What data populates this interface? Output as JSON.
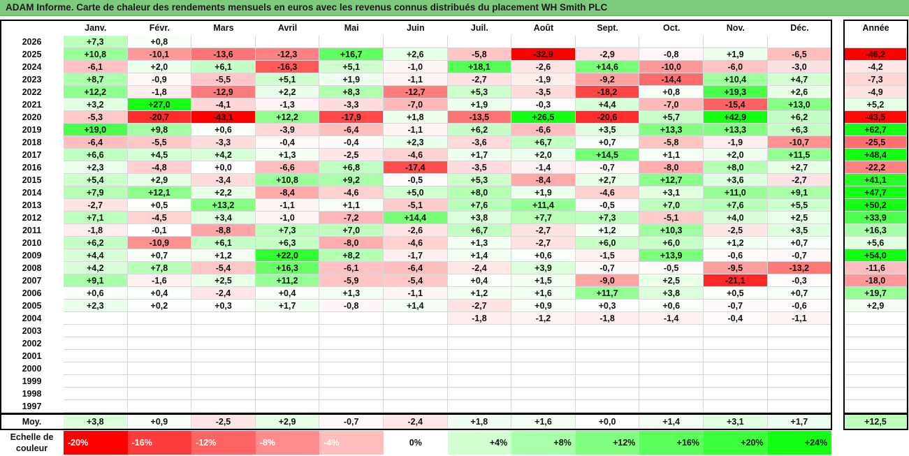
{
  "title": "ADAM Informe. Carte de chaleur des rendements mensuels en euros avec les revenus connus distribués du placement WH Smith PLC",
  "chart_data": {
    "type": "heatmap",
    "columns": [
      "Janv.",
      "Févr.",
      "Mars",
      "Avril",
      "Mai",
      "Juin",
      "Juil.",
      "Août",
      "Sept.",
      "Oct.",
      "Nov.",
      "Déc."
    ],
    "year_column_label": "Année",
    "rows": [
      {
        "year": "2026",
        "months": [
          "+7,3",
          "+0,8",
          "",
          "",
          "",
          "",
          "",
          "",
          "",
          "",
          "",
          ""
        ],
        "annual": ""
      },
      {
        "year": "2025",
        "months": [
          "+10,8",
          "-10,1",
          "-13,6",
          "-12,3",
          "+16,7",
          "+2,6",
          "-5,8",
          "-32,9",
          "-2,9",
          "-0,8",
          "+1,9",
          "-6,5"
        ],
        "annual": "-46,2"
      },
      {
        "year": "2024",
        "months": [
          "-6,1",
          "+2,0",
          "+6,1",
          "-16,3",
          "+5,1",
          "-1,0",
          "+18,1",
          "-2,6",
          "+14,6",
          "-10,0",
          "-6,0",
          "-3,0"
        ],
        "annual": "-4,2"
      },
      {
        "year": "2023",
        "months": [
          "+8,7",
          "-0,9",
          "-5,5",
          "+5,1",
          "+1,9",
          "-1,1",
          "-2,7",
          "-1,9",
          "-9,2",
          "-14,4",
          "+10,4",
          "+4,7"
        ],
        "annual": "-7,3"
      },
      {
        "year": "2022",
        "months": [
          "+12,2",
          "-1,8",
          "-12,9",
          "+2,2",
          "+8,3",
          "-12,7",
          "+5,3",
          "-3,5",
          "-18,2",
          "+0,8",
          "+19,3",
          "+2,6"
        ],
        "annual": "-4,9"
      },
      {
        "year": "2021",
        "months": [
          "+3,2",
          "+27,0",
          "-4,1",
          "-1,3",
          "-3,3",
          "-7,0",
          "+1,9",
          "-0,3",
          "+4,4",
          "-7,0",
          "-15,4",
          "+13,0"
        ],
        "annual": "+5,2"
      },
      {
        "year": "2020",
        "months": [
          "-5,3",
          "-20,7",
          "-43,1",
          "+12,2",
          "-17,9",
          "+1,8",
          "-13,5",
          "+26,5",
          "-20,6",
          "+5,7",
          "+42,9",
          "+6,2"
        ],
        "annual": "-43,5"
      },
      {
        "year": "2019",
        "months": [
          "+19,0",
          "+9,8",
          "+0,6",
          "-3,9",
          "-6,4",
          "-1,1",
          "+6,2",
          "-6,6",
          "+3,5",
          "+13,3",
          "+13,3",
          "+6,3"
        ],
        "annual": "+62,7"
      },
      {
        "year": "2018",
        "months": [
          "-6,4",
          "-5,5",
          "-3,3",
          "-0,4",
          "-0,4",
          "+2,3",
          "-3,6",
          "+6,7",
          "+0,7",
          "-5,8",
          "-1,9",
          "-10,7"
        ],
        "annual": "-25,5"
      },
      {
        "year": "2017",
        "months": [
          "+6,6",
          "+4,5",
          "+4,2",
          "+1,3",
          "-2,5",
          "-4,6",
          "+1,7",
          "+2,0",
          "+14,5",
          "+1,1",
          "+2,0",
          "+11,5"
        ],
        "annual": "+48,4"
      },
      {
        "year": "2016",
        "months": [
          "+2,3",
          "-4,8",
          "+0,0",
          "-6,6",
          "+6,8",
          "-17,4",
          "-3,5",
          "-1,4",
          "-0,7",
          "-8,0",
          "+8,0",
          "+2,7"
        ],
        "annual": "-22,2"
      },
      {
        "year": "2015",
        "months": [
          "+5,4",
          "+2,9",
          "-3,4",
          "+10,8",
          "+9,2",
          "-0,5",
          "+5,3",
          "-8,4",
          "+2,7",
          "+12,7",
          "+3,6",
          "-2,7"
        ],
        "annual": "+41,1"
      },
      {
        "year": "2014",
        "months": [
          "+7,9",
          "+12,1",
          "+2,2",
          "-8,4",
          "-4,6",
          "+5,0",
          "+8,0",
          "+1,9",
          "-4,6",
          "+3,1",
          "+11,0",
          "+9,1"
        ],
        "annual": "+47,7"
      },
      {
        "year": "2013",
        "months": [
          "-2,7",
          "+0,5",
          "+13,2",
          "-1,1",
          "+1,1",
          "-5,1",
          "+7,6",
          "+11,4",
          "-0,5",
          "+7,0",
          "+7,6",
          "+5,5"
        ],
        "annual": "+50,2"
      },
      {
        "year": "2012",
        "months": [
          "+7,1",
          "-4,5",
          "+3,4",
          "-1,0",
          "-7,2",
          "+14,4",
          "+3,8",
          "+7,7",
          "+7,3",
          "-5,1",
          "+4,0",
          "+2,5"
        ],
        "annual": "+33,9"
      },
      {
        "year": "2011",
        "months": [
          "-1,8",
          "-0,1",
          "-8,8",
          "+7,3",
          "+7,0",
          "-2,6",
          "+6,7",
          "-2,7",
          "+1,2",
          "+10,3",
          "-2,5",
          "+3,5"
        ],
        "annual": "+16,3"
      },
      {
        "year": "2010",
        "months": [
          "+6,2",
          "-10,9",
          "+6,1",
          "+6,3",
          "-8,0",
          "-4,6",
          "+1,3",
          "-2,7",
          "+6,0",
          "+6,0",
          "+1,2",
          "+0,7"
        ],
        "annual": "+5,6"
      },
      {
        "year": "2009",
        "months": [
          "+4,4",
          "+0,7",
          "+1,2",
          "+22,0",
          "+8,2",
          "-1,7",
          "+1,4",
          "+0,6",
          "-1,5",
          "+13,9",
          "-0,6",
          "-0,7"
        ],
        "annual": "+54,0"
      },
      {
        "year": "2008",
        "months": [
          "+4,2",
          "+7,8",
          "-5,4",
          "+16,3",
          "-6,1",
          "-6,4",
          "-2,4",
          "+3,9",
          "-0,7",
          "-0,5",
          "-9,5",
          "-13,2"
        ],
        "annual": "-11,6"
      },
      {
        "year": "2007",
        "months": [
          "+9,1",
          "-1,6",
          "+2,5",
          "+11,2",
          "-5,9",
          "-5,4",
          "+0,4",
          "+1,5",
          "-9,0",
          "+2,5",
          "-21,1",
          "-0,3"
        ],
        "annual": "-18,0"
      },
      {
        "year": "2006",
        "months": [
          "+0,6",
          "+0,4",
          "-2,4",
          "+0,4",
          "+1,3",
          "-1,1",
          "+1,2",
          "+1,6",
          "+11,7",
          "+3,8",
          "+0,5",
          "+0,7"
        ],
        "annual": "+19,7"
      },
      {
        "year": "2005",
        "months": [
          "+2,3",
          "+0,2",
          "+0,3",
          "+1,7",
          "-0,8",
          "+1,4",
          "-2,7",
          "+0,9",
          "+0,3",
          "+0,6",
          "-0,7",
          "-0,6"
        ],
        "annual": "+2,9"
      },
      {
        "year": "2004",
        "months": [
          "",
          "",
          "",
          "",
          "",
          "",
          "-1,8",
          "-1,2",
          "-1,8",
          "-1,4",
          "-0,4",
          "-1,1"
        ],
        "annual": ""
      },
      {
        "year": "2003",
        "months": [
          "",
          "",
          "",
          "",
          "",
          "",
          "",
          "",
          "",
          "",
          "",
          ""
        ],
        "annual": ""
      },
      {
        "year": "2002",
        "months": [
          "",
          "",
          "",
          "",
          "",
          "",
          "",
          "",
          "",
          "",
          "",
          ""
        ],
        "annual": ""
      },
      {
        "year": "2001",
        "months": [
          "",
          "",
          "",
          "",
          "",
          "",
          "",
          "",
          "",
          "",
          "",
          ""
        ],
        "annual": ""
      },
      {
        "year": "2000",
        "months": [
          "",
          "",
          "",
          "",
          "",
          "",
          "",
          "",
          "",
          "",
          "",
          ""
        ],
        "annual": ""
      },
      {
        "year": "1999",
        "months": [
          "",
          "",
          "",
          "",
          "",
          "",
          "",
          "",
          "",
          "",
          "",
          ""
        ],
        "annual": ""
      },
      {
        "year": "1998",
        "months": [
          "",
          "",
          "",
          "",
          "",
          "",
          "",
          "",
          "",
          "",
          "",
          ""
        ],
        "annual": ""
      },
      {
        "year": "1997",
        "months": [
          "",
          "",
          "",
          "",
          "",
          "",
          "",
          "",
          "",
          "",
          "",
          ""
        ],
        "annual": ""
      }
    ],
    "average": {
      "label": "Moy.",
      "months": [
        "+3,8",
        "+0,9",
        "-2,5",
        "+2,9",
        "-0,7",
        "-2,4",
        "+1,8",
        "+1,6",
        "+0,0",
        "+1,4",
        "+3,1",
        "+1,7"
      ],
      "annual": "+12,5"
    },
    "scale": {
      "label": "Echelle de couleur",
      "items": [
        {
          "text": "-20%",
          "color": "#ff0000"
        },
        {
          "text": "-16%",
          "color": "#ff3c3c"
        },
        {
          "text": "-12%",
          "color": "#ff6464"
        },
        {
          "text": "-8%",
          "color": "#ff8c8c"
        },
        {
          "text": "-4%",
          "color": "#ffbebe"
        },
        {
          "text": "0%",
          "color": "#ffffff"
        },
        {
          "text": "+4%",
          "color": "#d2ffd2"
        },
        {
          "text": "+8%",
          "color": "#aaffaa"
        },
        {
          "text": "+12%",
          "color": "#82ff82"
        },
        {
          "text": "+16%",
          "color": "#5aff5a"
        },
        {
          "text": "+20%",
          "color": "#3cff3c"
        },
        {
          "text": "+24%",
          "color": "#14ff14"
        }
      ]
    }
  }
}
